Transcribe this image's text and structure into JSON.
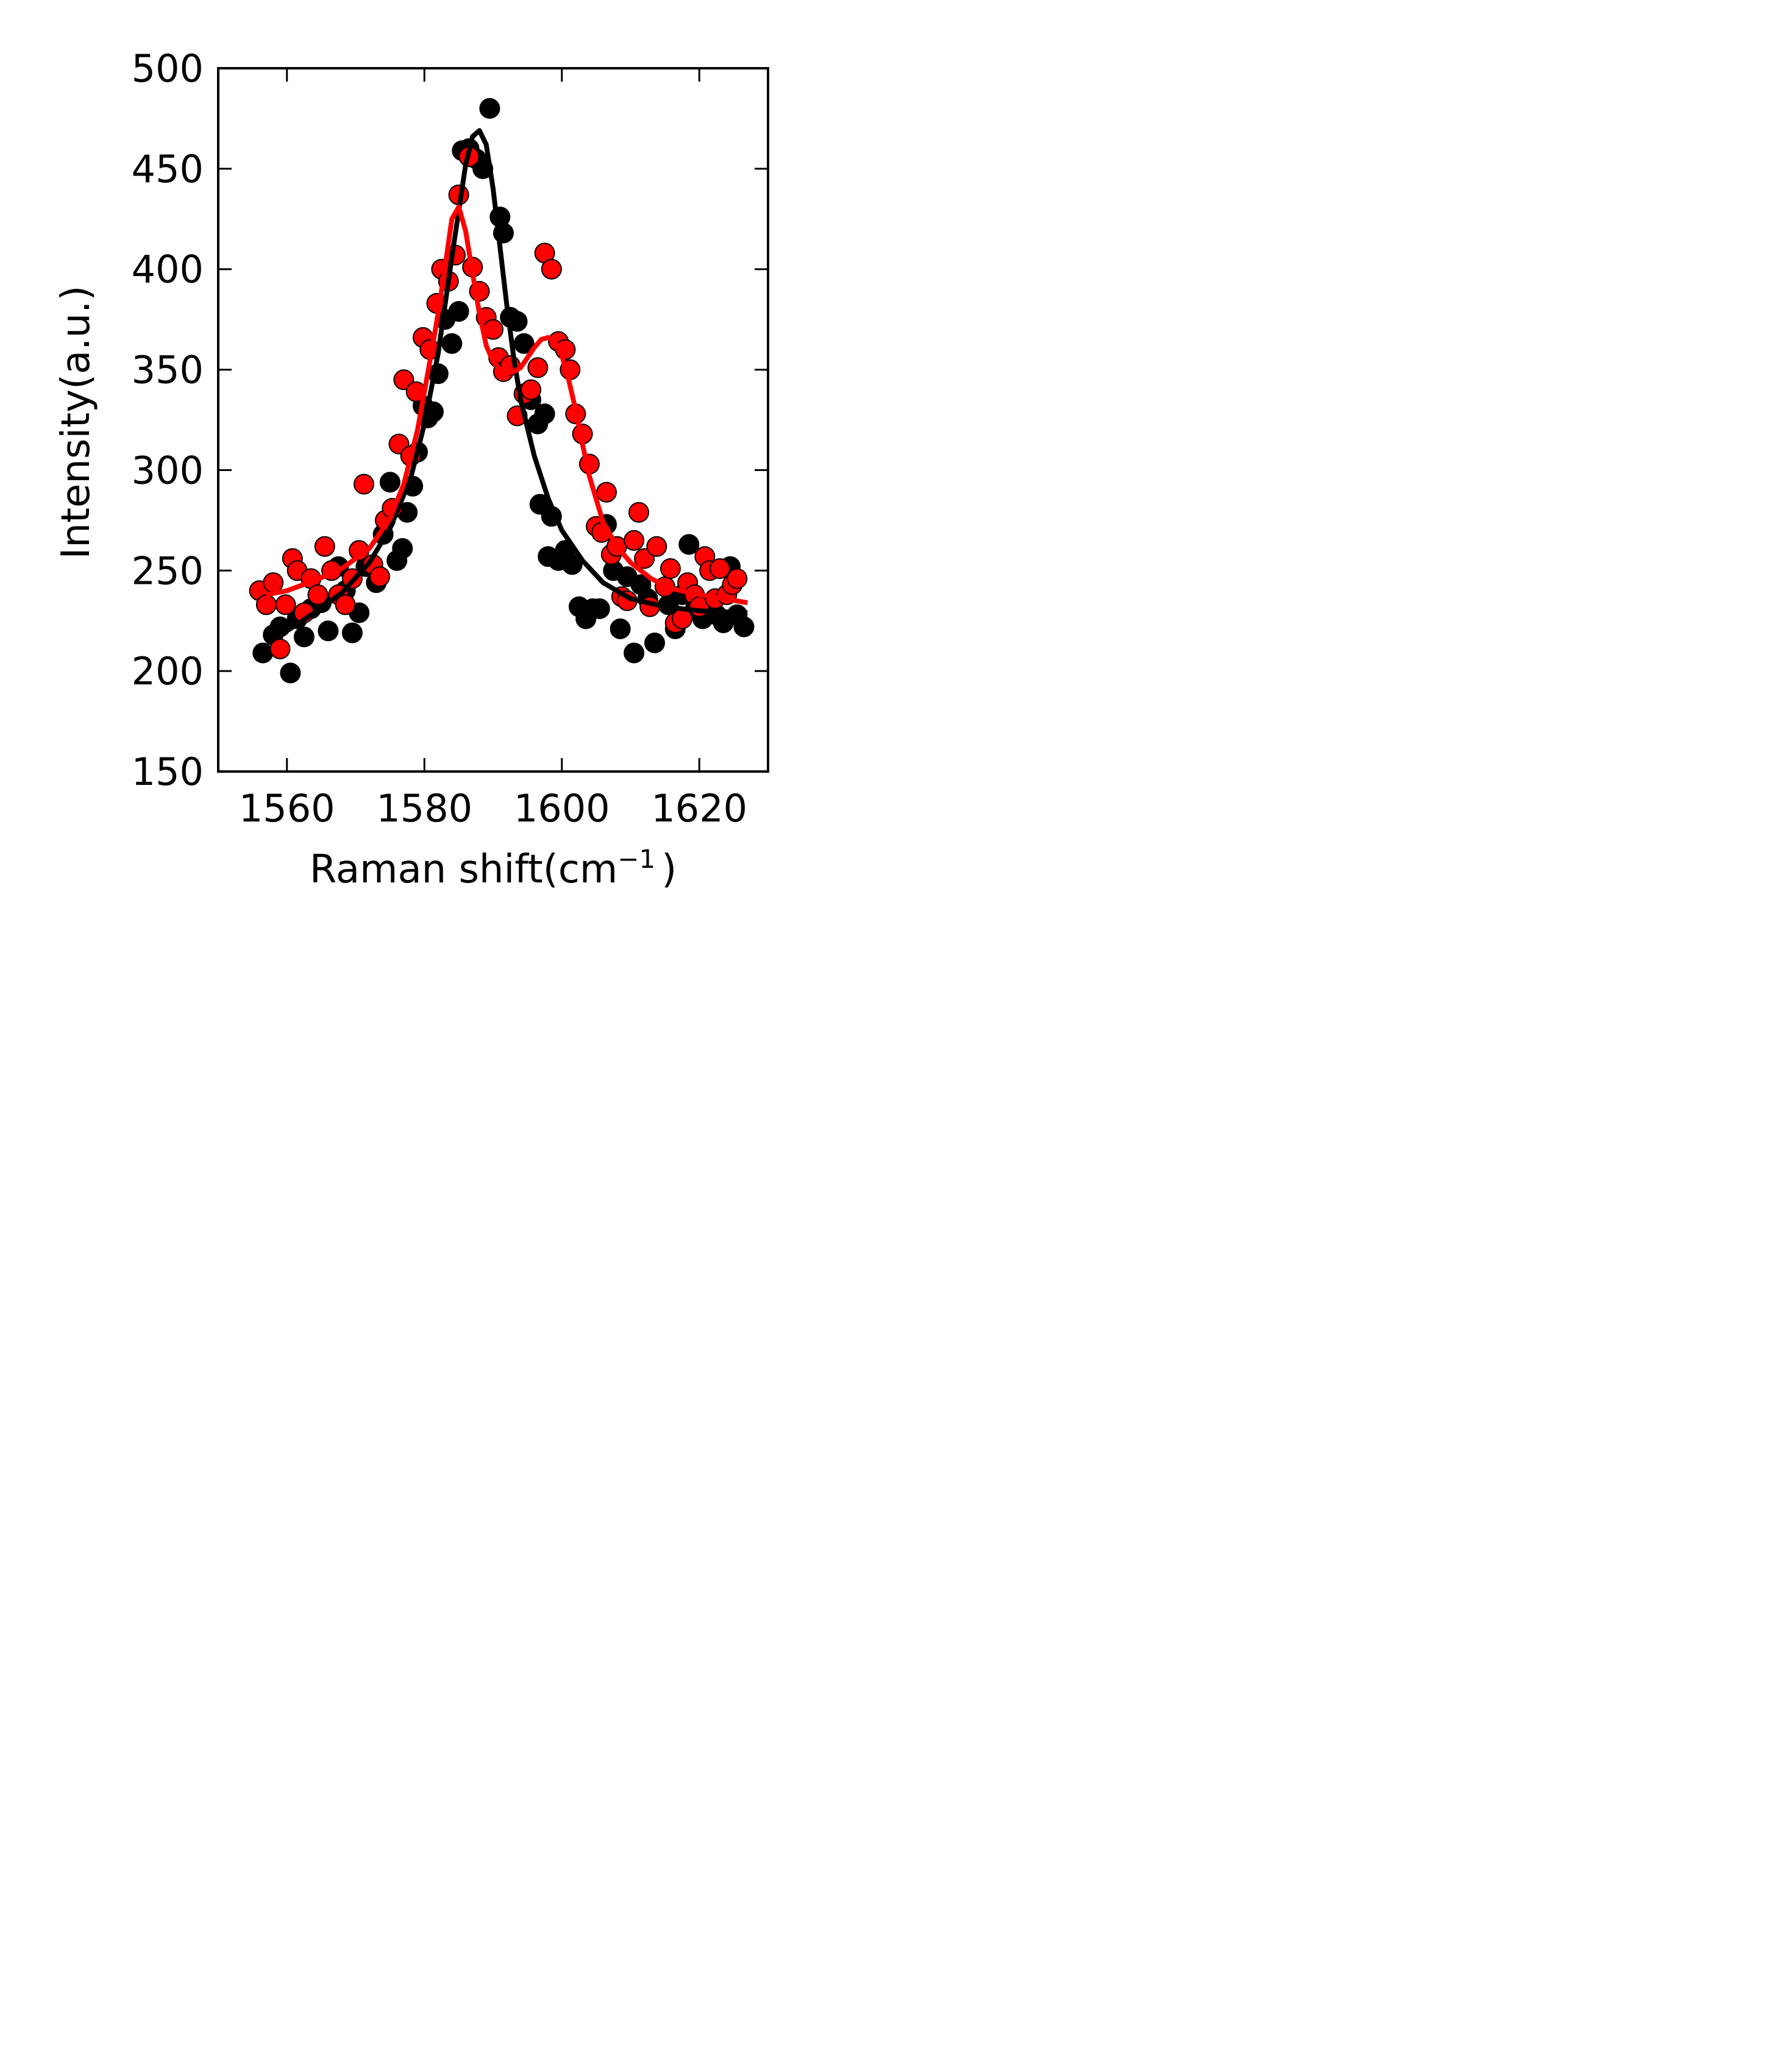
{
  "chart_data": {
    "type": "scatter",
    "xlabel": "Raman shift(cm",
    "xlabel_sup": "−1",
    "xlabel_close": ")",
    "ylabel": "Intensity(a.u.)",
    "xlim": [
      1550,
      1630
    ],
    "ylim": [
      150,
      500
    ],
    "xticks": [
      1560,
      1580,
      1600,
      1620
    ],
    "yticks": [
      150,
      200,
      250,
      300,
      350,
      400,
      450,
      500
    ],
    "grid": false,
    "colors": {
      "black_series": "#000000",
      "red_series": "#ff0000",
      "axis": "#000000"
    },
    "series": [
      {
        "color": "#000000",
        "points": [
          [
            1556.5,
            209
          ],
          [
            1558.0,
            218
          ],
          [
            1559.0,
            222
          ],
          [
            1560.5,
            199
          ],
          [
            1561.5,
            226
          ],
          [
            1562.5,
            217
          ],
          [
            1563.5,
            231
          ],
          [
            1565.0,
            234
          ],
          [
            1566.0,
            220
          ],
          [
            1567.5,
            252
          ],
          [
            1568.5,
            240
          ],
          [
            1569.5,
            219
          ],
          [
            1570.5,
            229
          ],
          [
            1571.5,
            252
          ],
          [
            1573.0,
            244
          ],
          [
            1574.0,
            268
          ],
          [
            1575.0,
            294
          ],
          [
            1576.0,
            255
          ],
          [
            1576.8,
            261
          ],
          [
            1577.5,
            279
          ],
          [
            1578.3,
            292
          ],
          [
            1579.0,
            309
          ],
          [
            1579.8,
            332
          ],
          [
            1580.5,
            326
          ],
          [
            1581.3,
            329
          ],
          [
            1582.0,
            348
          ],
          [
            1583.0,
            375
          ],
          [
            1584.0,
            363
          ],
          [
            1585.0,
            379
          ],
          [
            1585.5,
            459
          ],
          [
            1586.5,
            460
          ],
          [
            1587.5,
            455
          ],
          [
            1588.5,
            450
          ],
          [
            1589.5,
            480
          ],
          [
            1591.0,
            426
          ],
          [
            1591.5,
            418
          ],
          [
            1592.5,
            376
          ],
          [
            1593.5,
            374
          ],
          [
            1594.5,
            363
          ],
          [
            1595.5,
            335
          ],
          [
            1596.5,
            323
          ],
          [
            1597.5,
            328
          ],
          [
            1596.8,
            283
          ],
          [
            1598.5,
            277
          ],
          [
            1598.0,
            257
          ],
          [
            1599.5,
            255
          ],
          [
            1600.5,
            260
          ],
          [
            1601.5,
            253
          ],
          [
            1602.5,
            232
          ],
          [
            1603.5,
            226
          ],
          [
            1604.5,
            231
          ],
          [
            1605.5,
            231
          ],
          [
            1606.5,
            273
          ],
          [
            1607.5,
            250
          ],
          [
            1608.5,
            221
          ],
          [
            1609.5,
            247
          ],
          [
            1610.5,
            209
          ],
          [
            1611.5,
            243
          ],
          [
            1612.5,
            236
          ],
          [
            1613.5,
            214
          ],
          [
            1615.5,
            233
          ],
          [
            1616.5,
            221
          ],
          [
            1617.5,
            238
          ],
          [
            1618.5,
            263
          ],
          [
            1619.5,
            232
          ],
          [
            1620.5,
            226
          ],
          [
            1621.5,
            232
          ],
          [
            1622.5,
            228
          ],
          [
            1623.5,
            224
          ],
          [
            1624.5,
            252
          ],
          [
            1625.5,
            228
          ],
          [
            1626.5,
            222
          ]
        ],
        "fit": [
          [
            1557,
            215
          ],
          [
            1560,
            220
          ],
          [
            1564,
            229
          ],
          [
            1568,
            239
          ],
          [
            1572,
            254
          ],
          [
            1575,
            271
          ],
          [
            1578,
            296
          ],
          [
            1580,
            323
          ],
          [
            1582,
            358
          ],
          [
            1584,
            406
          ],
          [
            1586,
            452
          ],
          [
            1587,
            466
          ],
          [
            1588,
            469
          ],
          [
            1589,
            462
          ],
          [
            1590,
            440
          ],
          [
            1591,
            411
          ],
          [
            1592,
            382
          ],
          [
            1593,
            356
          ],
          [
            1594,
            335
          ],
          [
            1596,
            307
          ],
          [
            1598,
            286
          ],
          [
            1600,
            270
          ],
          [
            1603,
            255
          ],
          [
            1606,
            244
          ],
          [
            1610,
            236
          ],
          [
            1615,
            232
          ],
          [
            1620,
            230
          ],
          [
            1627,
            229
          ]
        ]
      },
      {
        "color": "#ff0000",
        "points": [
          [
            1556.0,
            240
          ],
          [
            1557.0,
            233
          ],
          [
            1558.0,
            244
          ],
          [
            1559.0,
            211
          ],
          [
            1559.8,
            233
          ],
          [
            1560.8,
            256
          ],
          [
            1561.5,
            250
          ],
          [
            1562.5,
            229
          ],
          [
            1563.5,
            246
          ],
          [
            1564.5,
            238
          ],
          [
            1565.5,
            262
          ],
          [
            1566.5,
            250
          ],
          [
            1567.5,
            238
          ],
          [
            1568.5,
            233
          ],
          [
            1569.5,
            246
          ],
          [
            1570.5,
            260
          ],
          [
            1571.2,
            293
          ],
          [
            1572.5,
            253
          ],
          [
            1573.5,
            247
          ],
          [
            1574.3,
            275
          ],
          [
            1575.3,
            281
          ],
          [
            1576.3,
            313
          ],
          [
            1577.0,
            345
          ],
          [
            1578.0,
            307
          ],
          [
            1578.8,
            339
          ],
          [
            1579.8,
            366
          ],
          [
            1580.8,
            360
          ],
          [
            1581.8,
            383
          ],
          [
            1582.5,
            400
          ],
          [
            1583.5,
            394
          ],
          [
            1584.5,
            407
          ],
          [
            1585.0,
            437
          ],
          [
            1586.5,
            456
          ],
          [
            1587.0,
            401
          ],
          [
            1588.0,
            389
          ],
          [
            1589.0,
            376
          ],
          [
            1590.0,
            370
          ],
          [
            1590.8,
            356
          ],
          [
            1591.5,
            349
          ],
          [
            1592.5,
            352
          ],
          [
            1593.5,
            327
          ],
          [
            1594.5,
            338
          ],
          [
            1595.5,
            340
          ],
          [
            1596.5,
            351
          ],
          [
            1597.5,
            408
          ],
          [
            1598.5,
            400
          ],
          [
            1599.5,
            364
          ],
          [
            1600.5,
            360
          ],
          [
            1601.2,
            350
          ],
          [
            1602.0,
            328
          ],
          [
            1603.0,
            318
          ],
          [
            1604.0,
            303
          ],
          [
            1605.0,
            272
          ],
          [
            1605.8,
            269
          ],
          [
            1606.5,
            289
          ],
          [
            1607.2,
            258
          ],
          [
            1608.0,
            262
          ],
          [
            1608.7,
            237
          ],
          [
            1609.5,
            235
          ],
          [
            1610.5,
            265
          ],
          [
            1611.2,
            279
          ],
          [
            1612.0,
            256
          ],
          [
            1612.8,
            232
          ],
          [
            1613.8,
            262
          ],
          [
            1615.0,
            242
          ],
          [
            1615.8,
            251
          ],
          [
            1616.5,
            224
          ],
          [
            1617.5,
            226
          ],
          [
            1618.3,
            244
          ],
          [
            1619.3,
            238
          ],
          [
            1620.0,
            232
          ],
          [
            1620.8,
            257
          ],
          [
            1621.5,
            250
          ],
          [
            1622.3,
            236
          ],
          [
            1623.0,
            251
          ],
          [
            1624.0,
            238
          ],
          [
            1624.8,
            243
          ],
          [
            1625.5,
            246
          ]
        ],
        "fit": [
          [
            1557,
            238
          ],
          [
            1560,
            240
          ],
          [
            1564,
            245
          ],
          [
            1568,
            251
          ],
          [
            1572,
            261
          ],
          [
            1575,
            276
          ],
          [
            1577,
            293
          ],
          [
            1579,
            320
          ],
          [
            1581,
            358
          ],
          [
            1582,
            378
          ],
          [
            1583,
            401
          ],
          [
            1584,
            425
          ],
          [
            1585,
            431
          ],
          [
            1586,
            419
          ],
          [
            1587,
            398
          ],
          [
            1588,
            378
          ],
          [
            1589,
            362
          ],
          [
            1590,
            354
          ],
          [
            1591,
            350
          ],
          [
            1592,
            348
          ],
          [
            1593,
            349
          ],
          [
            1594,
            351
          ],
          [
            1595,
            356
          ],
          [
            1596,
            361
          ],
          [
            1597,
            365
          ],
          [
            1598,
            366
          ],
          [
            1599,
            364
          ],
          [
            1600,
            357
          ],
          [
            1601,
            345
          ],
          [
            1602,
            330
          ],
          [
            1603,
            313
          ],
          [
            1604,
            297
          ],
          [
            1606,
            274
          ],
          [
            1608,
            262
          ],
          [
            1610,
            254
          ],
          [
            1613,
            246
          ],
          [
            1616,
            241
          ],
          [
            1620,
            238
          ],
          [
            1627,
            234
          ]
        ]
      }
    ]
  }
}
